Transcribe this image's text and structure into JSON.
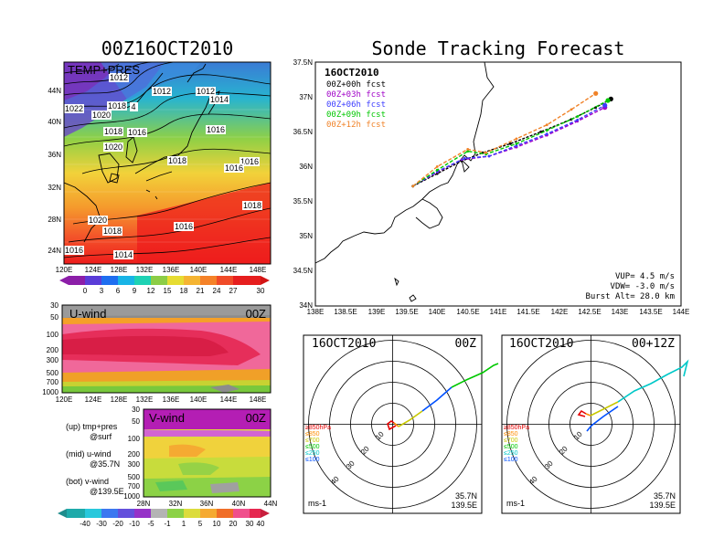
{
  "titles": {
    "left": "00Z16OCT2010",
    "right": "Sonde Tracking Forecast"
  },
  "upper_panel": {
    "label": "TEMP+PRES",
    "isobars": [
      "1012",
      "1012",
      "1012",
      "1014",
      "1022",
      "1020",
      "1018",
      "4",
      "1018",
      "1016",
      "1020",
      "1018",
      "1016",
      "1016",
      "1016",
      "1018",
      "1020",
      "1018",
      "1016",
      "1014",
      "1016"
    ],
    "x_ticks": [
      "120E",
      "124E",
      "128E",
      "132E",
      "136E",
      "140E",
      "144E",
      "148E"
    ],
    "y_ticks": [
      "44N",
      "40N",
      "36N",
      "32N",
      "28N",
      "24N"
    ],
    "colorbar_ticks": [
      "0",
      "3",
      "6",
      "9",
      "12",
      "15",
      "18",
      "21",
      "24",
      "27",
      "30"
    ]
  },
  "uwind_panel": {
    "label": "U-wind",
    "time": "00Z",
    "y_ticks": [
      "30",
      "50",
      "100",
      "200",
      "300",
      "500",
      "700",
      "1000"
    ],
    "x_ticks": [
      "120E",
      "124E",
      "128E",
      "132E",
      "136E",
      "140E",
      "144E",
      "148E"
    ]
  },
  "vwind_panel": {
    "label": "V-wind",
    "time": "00Z",
    "y_ticks": [
      "30",
      "50",
      "100",
      "200",
      "300",
      "500",
      "700",
      "1000"
    ],
    "x_ticks": [
      "28N",
      "32N",
      "36N",
      "40N",
      "44N"
    ]
  },
  "legend_notes": [
    "(up) tmp+pres",
    "@surf",
    "(mid) u-wind",
    "@35.7N",
    "(bot) v-wind",
    "@139.5E"
  ],
  "wind_colorbar_ticks": [
    "-40",
    "-30",
    "-20",
    "-10",
    "-5",
    "-1",
    "1",
    "5",
    "10",
    "20",
    "30",
    "40"
  ],
  "tracking": {
    "date": "16OCT2010",
    "forecasts": [
      {
        "label": "00Z+00h  fcst",
        "color": "#000000"
      },
      {
        "label": "00Z+03h  fcst",
        "color": "#a000c8"
      },
      {
        "label": "00Z+06h  fcst",
        "color": "#3c3cff"
      },
      {
        "label": "00Z+09h  fcst",
        "color": "#00c800"
      },
      {
        "label": "00Z+12h  fcst",
        "color": "#f08228"
      }
    ],
    "x_ticks": [
      "138E",
      "138.5E",
      "139E",
      "139.5E",
      "140E",
      "140.5E",
      "141E",
      "141.5E",
      "142E",
      "142.5E",
      "143E",
      "143.5E",
      "144E"
    ],
    "y_ticks": [
      "37.5N",
      "37N",
      "36.5N",
      "36N",
      "35.5N",
      "35N",
      "34.5N",
      "34N"
    ],
    "stats": [
      "VUP=  4.5  m/s",
      "VDW=  -3.0  m/s",
      "Burst Alt=  28.0  km"
    ]
  },
  "chart_data": [
    {
      "type": "line",
      "title": "Sonde Tracking Forecast",
      "xlim": [
        138,
        144
      ],
      "ylim": [
        34,
        37.5
      ],
      "series": [
        {
          "name": "00Z+00h  fcst",
          "color": "#000000",
          "x": [
            139.6,
            140.0,
            140.4,
            140.75,
            141.2,
            141.7,
            142.2,
            142.6,
            142.85
          ],
          "y": [
            35.72,
            35.9,
            36.08,
            36.2,
            36.33,
            36.5,
            36.68,
            36.85,
            36.97
          ]
        },
        {
          "name": "00Z+03h  fcst",
          "color": "#a000c8",
          "x": [
            139.6,
            140.0,
            140.4,
            140.85,
            141.3,
            141.8,
            142.3,
            142.75
          ],
          "y": [
            35.72,
            35.92,
            36.1,
            36.15,
            36.28,
            36.45,
            36.65,
            36.85
          ]
        },
        {
          "name": "00Z+06h  fcst",
          "color": "#3c3cff",
          "x": [
            139.6,
            140.0,
            140.45,
            140.85,
            141.3,
            141.8,
            142.3,
            142.75
          ],
          "y": [
            35.72,
            35.93,
            36.12,
            36.15,
            36.3,
            36.47,
            36.67,
            36.88
          ]
        },
        {
          "name": "00Z+09h  fcst",
          "color": "#00c800",
          "x": [
            139.6,
            140.0,
            140.5,
            140.8,
            141.3,
            141.8,
            142.3,
            142.8
          ],
          "y": [
            35.72,
            35.95,
            36.22,
            36.18,
            36.33,
            36.52,
            36.72,
            36.95
          ]
        },
        {
          "name": "00Z+12h  fcst",
          "color": "#f08228",
          "x": [
            139.6,
            140.0,
            140.5,
            140.8,
            141.3,
            141.8,
            142.2,
            142.6
          ],
          "y": [
            35.72,
            36.0,
            36.25,
            36.2,
            36.4,
            36.6,
            36.82,
            37.05
          ]
        }
      ]
    }
  ],
  "hodographs": [
    {
      "date": "16OCT2010",
      "time": "00Z",
      "rings": [
        "10",
        "20",
        "30",
        "40"
      ],
      "levels": [
        {
          "label": "≥850hPa",
          "color": "#e60000"
        },
        {
          "label": "≤850",
          "color": "#ff8c00"
        },
        {
          "label": "≤700",
          "color": "#c8c800"
        },
        {
          "label": "≤500",
          "color": "#00c800"
        },
        {
          "label": "≤250",
          "color": "#00c8c8"
        },
        {
          "label": "≤100",
          "color": "#0050ff"
        }
      ],
      "unit": "ms-1",
      "lat": "35.7N",
      "lon": "139.5E"
    },
    {
      "date": "16OCT2010",
      "time": "00+12Z",
      "rings": [
        "10",
        "20",
        "30",
        "40"
      ],
      "levels": [
        {
          "label": "≥850hPa",
          "color": "#e60000"
        },
        {
          "label": "≤850",
          "color": "#ff8c00"
        },
        {
          "label": "≤700",
          "color": "#c8c800"
        },
        {
          "label": "≤500",
          "color": "#00c800"
        },
        {
          "label": "≤250",
          "color": "#00c8c8"
        },
        {
          "label": "≤100",
          "color": "#0050ff"
        }
      ],
      "unit": "ms-1",
      "lat": "35.7N",
      "lon": "139.5E"
    }
  ]
}
